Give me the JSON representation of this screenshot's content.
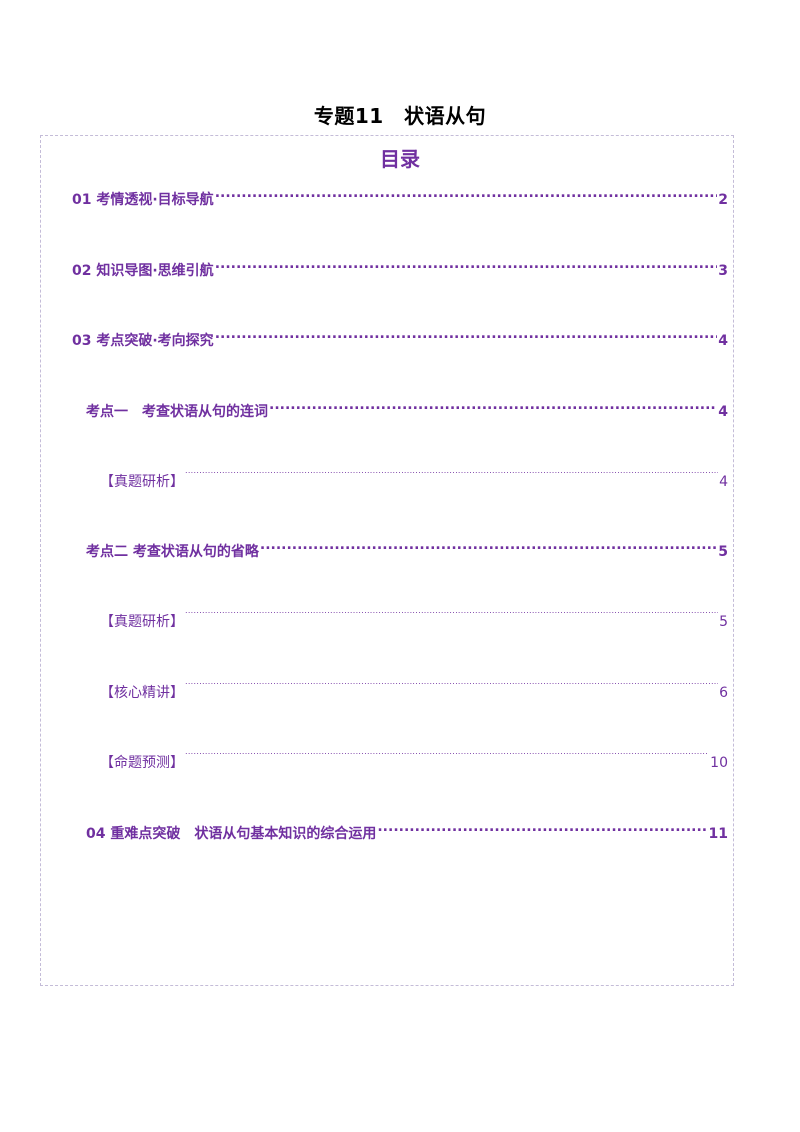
{
  "document": {
    "title": "专题11　状语从句"
  },
  "toc": {
    "heading": "目录",
    "entries": [
      {
        "label": "01 考情透视·目标导航",
        "page": "2"
      },
      {
        "label": "02 知识导图·思维引航",
        "page": "3"
      },
      {
        "label": "03 考点突破·考向探究",
        "page": "4"
      },
      {
        "label": "考点一　考查状语从句的连词",
        "page": "4"
      },
      {
        "label": "【真题研析】",
        "page": "4"
      },
      {
        "label": "考点二  考查状语从句的省略",
        "page": "5"
      },
      {
        "label": "【真题研析】",
        "page": "5"
      },
      {
        "label": "【核心精讲】",
        "page": "6"
      },
      {
        "label": "【命题预测】",
        "page": "10"
      },
      {
        "label": "04  重难点突破　状语从句基本知识的综合运用",
        "page": "11"
      }
    ]
  }
}
